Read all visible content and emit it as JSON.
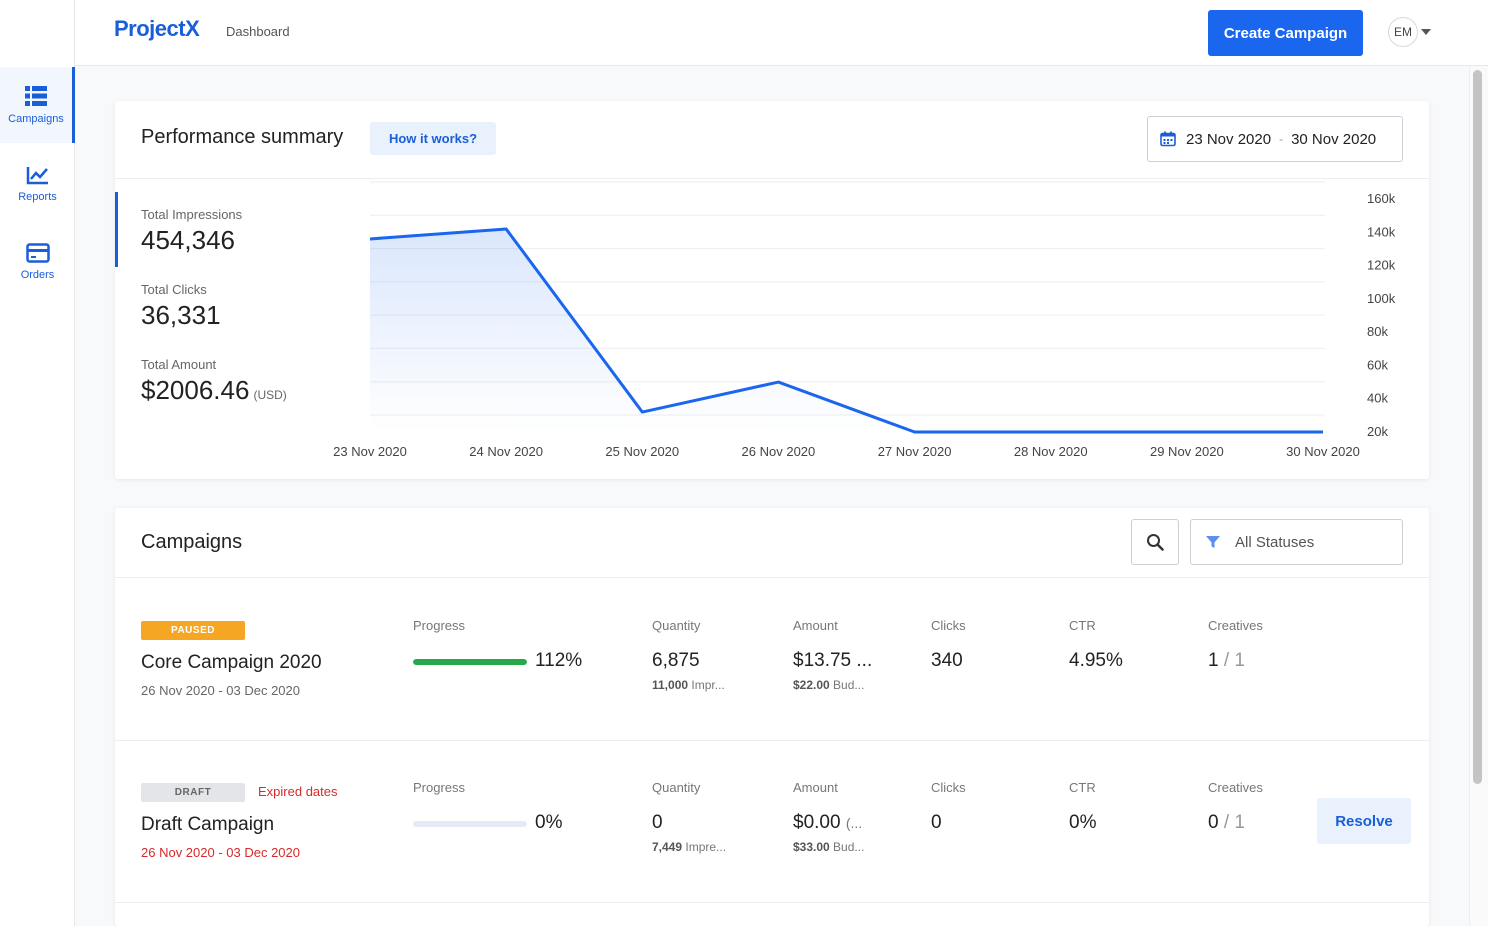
{
  "colors": {
    "accent": "#1a66ee",
    "paused": "#f5a623",
    "progress": "#27a84a",
    "warning": "#d62b2b"
  },
  "header": {
    "logo": "ProjectX",
    "breadcrumb": "Dashboard",
    "create_label": "Create Campaign",
    "avatar_initials": "EM"
  },
  "sidebar": {
    "items": [
      {
        "label": "Campaigns",
        "icon": "campaigns-list-icon",
        "active": true
      },
      {
        "label": "Reports",
        "icon": "reports-chart-icon",
        "active": false
      },
      {
        "label": "Orders",
        "icon": "orders-card-icon",
        "active": false
      }
    ]
  },
  "performance": {
    "title": "Performance summary",
    "how_label": "How it works?",
    "date_from": "23 Nov 2020",
    "date_sep": "-",
    "date_to": "30 Nov 2020",
    "stats": {
      "impressions_label": "Total Impressions",
      "impressions_value": "454,346",
      "clicks_label": "Total Clicks",
      "clicks_value": "36,331",
      "amount_label": "Total Amount",
      "amount_value": "$2006.46",
      "amount_unit": "(USD)"
    }
  },
  "chart_data": {
    "type": "area",
    "categories": [
      "23 Nov 2020",
      "24 Nov 2020",
      "25 Nov 2020",
      "26 Nov 2020",
      "27 Nov 2020",
      "28 Nov 2020",
      "29 Nov 2020",
      "30 Nov 2020"
    ],
    "series": [
      {
        "values": [
          136000,
          142000,
          32000,
          50000,
          20000,
          20000,
          20000,
          20000
        ]
      }
    ],
    "yticks": [
      "20k",
      "40k",
      "60k",
      "80k",
      "100k",
      "120k",
      "140k",
      "160k"
    ],
    "ylim": [
      20000,
      160000
    ],
    "y_axis_position": "right",
    "grid": true
  },
  "campaigns": {
    "title": "Campaigns",
    "filter_label": "All Statuses",
    "rows": [
      {
        "badge": "PAUSED",
        "warning": "",
        "name": "Core Campaign 2020",
        "dates": "26 Nov 2020 - 03 Dec 2020",
        "progress_label": "Progress",
        "progress_pct": "112%",
        "progress_fraction": 1.0,
        "quantity_label": "Quantity",
        "quantity": "6,875",
        "quantity_sub_bold": "11,000",
        "quantity_sub": "Impr...",
        "amount_label": "Amount",
        "amount": "$13.75 ...",
        "amount_sub_bold": "$22.00",
        "amount_sub": "Bud...",
        "clicks_label": "Clicks",
        "clicks": "340",
        "ctr_label": "CTR",
        "ctr": "4.95%",
        "creatives_label": "Creatives",
        "creatives_done": "1",
        "creatives_slash": "/",
        "creatives_total": "1"
      },
      {
        "badge": "DRAFT",
        "warning": "Expired dates",
        "name": "Draft Campaign",
        "dates": "26 Nov 2020 - 03 Dec 2020",
        "progress_label": "Progress",
        "progress_pct": "0%",
        "progress_fraction": 0,
        "quantity_label": "Quantity",
        "quantity": "0",
        "quantity_sub_bold": "7,449",
        "quantity_sub": "Impre...",
        "amount_label": "Amount",
        "amount": "$0.00",
        "amount_extra": "(...",
        "amount_sub_bold": "$33.00",
        "amount_sub": "Bud...",
        "clicks_label": "Clicks",
        "clicks": "0",
        "ctr_label": "CTR",
        "ctr": "0%",
        "creatives_label": "Creatives",
        "creatives_done": "0",
        "creatives_slash": "/",
        "creatives_total": "1",
        "resolve_label": "Resolve"
      }
    ]
  }
}
